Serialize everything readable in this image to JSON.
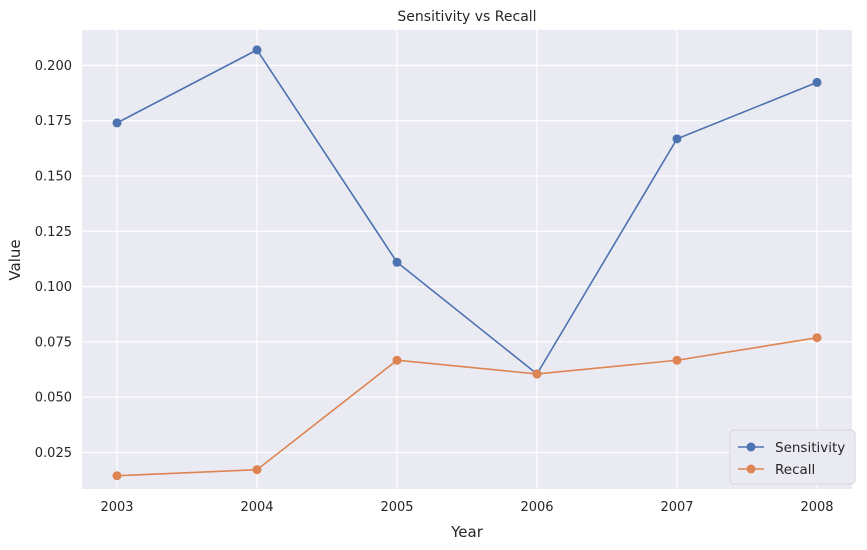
{
  "chart_data": {
    "type": "line",
    "title": "Sensitivity vs Recall",
    "xlabel": "Year",
    "ylabel": "Value",
    "x": [
      2003,
      2004,
      2005,
      2006,
      2007,
      2008
    ],
    "x_tick_labels": [
      "2003",
      "2004",
      "2005",
      "2006",
      "2007",
      "2008"
    ],
    "y_ticks": [
      0.025,
      0.05,
      0.075,
      0.1,
      0.125,
      0.15,
      0.175,
      0.2
    ],
    "y_tick_labels": [
      "0.025",
      "0.050",
      "0.075",
      "0.100",
      "0.125",
      "0.150",
      "0.175",
      "0.200"
    ],
    "ylim": [
      0.0085,
      0.216
    ],
    "xlim": [
      2002.75,
      2008.25
    ],
    "grid": true,
    "legend_position": "lower-right",
    "series": [
      {
        "name": "Sensitivity",
        "color": "#4c72b0",
        "marker": "circle",
        "values": [
          0.174,
          0.207,
          0.111,
          0.0605,
          0.1668,
          0.1923
        ]
      },
      {
        "name": "Recall",
        "color": "#dd8452",
        "marker": "circle",
        "values": [
          0.0145,
          0.0172,
          0.0667,
          0.0605,
          0.0667,
          0.0769
        ]
      }
    ],
    "colors": {
      "plot_background": "#eaeaf2",
      "grid": "#ffffff"
    }
  }
}
